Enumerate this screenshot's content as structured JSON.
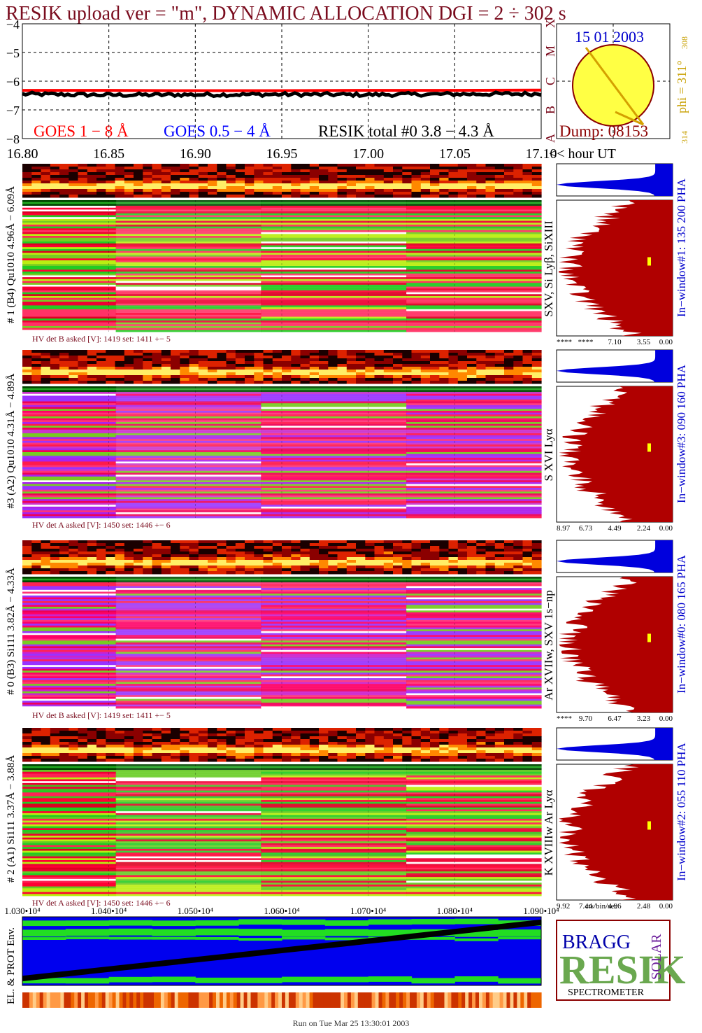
{
  "title": "RESIK upload ver = \"m\", DYNAMIC ALLOCATION  DGI =   2 ÷ 302 s",
  "colors": {
    "title": "#7a0c1e",
    "goes_long": "#ff0000",
    "goes_short": "#0000ff",
    "resik_total": "#000000",
    "background": "#ffffff",
    "histogram_fill": "#b00000",
    "histogram_top_fill": "#0000dd",
    "marker": "#ffff00",
    "sun": "#ffff44",
    "sun_border": "#8b0000",
    "date_text": "#0000cc",
    "phi_text": "#c8a000",
    "env_green": "#22dd22",
    "env_blue": "#0000ee"
  },
  "goes_panel": {
    "y_ticks": [
      "−4",
      "−5",
      "−6",
      "−7",
      "−8"
    ],
    "x_ticks": [
      "16.80",
      "16.85",
      "16.90",
      "16.95",
      "17.00",
      "17.05",
      "17.10"
    ],
    "x_suffix": "<< hour UT",
    "legend_goes_long": "GOES 1 − 8 Å",
    "legend_goes_short": "GOES 0.5 − 4 Å",
    "legend_resik": "RESIK total #0  3.8 − 4.3 Å",
    "class_letters": [
      "X",
      "M",
      "C",
      "B",
      "A"
    ]
  },
  "sun_panel": {
    "date": "15 01 2003",
    "dump": "Dump: 08153",
    "phi": "phi = 311°",
    "phi_upper": "308",
    "phi_lower": "314"
  },
  "channels": [
    {
      "left_label": "# 1 (B4) Qu1010 4.96Å − 6.09Å",
      "lines_label": "SXV, Si Lyβ, SiXIII",
      "window_label": "In−window#1:  135 200 PHA",
      "hv_label": "HV det B asked [V]:  1419 set:  1411  +−   5",
      "hist_ticks": [
        "****",
        "****",
        "7.10",
        "3.55",
        "0.00"
      ]
    },
    {
      "left_label": "#3 (A2) Qu1010  4.31Å − 4.89Å",
      "lines_label": "S XVI Lyα",
      "window_label": "In−window#3:  090 160 PHA",
      "hv_label": "HV det A asked [V]:  1450 set:  1446  +−   6",
      "hist_ticks": [
        "8.97",
        "6.73",
        "4.49",
        "2.24",
        "0.00"
      ]
    },
    {
      "left_label": "# 0 (B3) Si111  3.82Å − 4.33Å",
      "lines_label": "Ar XVIIw,  SXV 1s−np",
      "window_label": "In−window#0:  080 165 PHA",
      "hv_label": "HV det B asked [V]:  1419 set:  1411  +−   5",
      "hist_ticks": [
        "****",
        "9.70",
        "6.47",
        "3.23",
        "0.00"
      ]
    },
    {
      "left_label": "# 2 (A1) Si111  3.37Å − 3.88Å",
      "lines_label": "K XVIIIw  Ar Lyα",
      "window_label": "In−window#2:  055 110 PHA",
      "hv_label": "HV det A asked [V]:  1450 set:  1446  +−   6",
      "hist_ticks": [
        "9.92",
        "7.44",
        "4.96",
        "2.48",
        "0.00"
      ]
    }
  ],
  "hist_xlabel": "cts/bin/sec",
  "env_panel": {
    "x_ticks": [
      "1.030•10⁴",
      "1.040•10⁴",
      "1.050•10⁴",
      "1.060•10⁴",
      "1.070•10⁴",
      "1.080•10⁴",
      "1.090•10⁴"
    ],
    "label": "EL. & PROT Env."
  },
  "logo": {
    "word": "RESIK",
    "bragg": "BRAGG",
    "solar": "SOLAR",
    "caption": "SPECTROMETER"
  },
  "footer": "Run on Tue Mar 25 13:30:01 2003",
  "chart_data": [
    {
      "type": "line",
      "title": "RESIK upload ver = \"m\", DYNAMIC ALLOCATION  DGI =   2 ÷ 302 s",
      "xlabel": "hour UT",
      "ylabel": "",
      "xlim": [
        16.8,
        17.1
      ],
      "ylim": [
        -8,
        -4
      ],
      "grid": true,
      "series": [
        {
          "name": "GOES 1 − 8 Å",
          "x": [
            16.8,
            16.85,
            16.9,
            16.95,
            17.0,
            17.05,
            17.1
          ],
          "y": [
            -6.32,
            -6.32,
            -6.33,
            -6.33,
            -6.32,
            -6.32,
            -6.31
          ]
        },
        {
          "name": "RESIK total #0  3.8 − 4.3 Å",
          "x": [
            16.8,
            16.85,
            16.9,
            16.95,
            17.0,
            17.05,
            17.1
          ],
          "y": [
            -6.45,
            -6.48,
            -6.47,
            -6.46,
            -6.47,
            -6.45,
            -6.44
          ]
        }
      ]
    },
    {
      "type": "heatmap",
      "title": "",
      "xlabel": "hour UT",
      "xlim": [
        16.8,
        17.1
      ],
      "channels": [
        "#1",
        "#3",
        "#0",
        "#2"
      ]
    },
    {
      "type": "line",
      "title": "",
      "xlabel": "",
      "ylabel": "EL. & PROT Env.",
      "xlim": [
        10300,
        10900
      ],
      "series": [
        {
          "name": "",
          "x": [
            10300,
            10900
          ],
          "y": [
            0.1,
            0.92
          ]
        }
      ]
    }
  ]
}
